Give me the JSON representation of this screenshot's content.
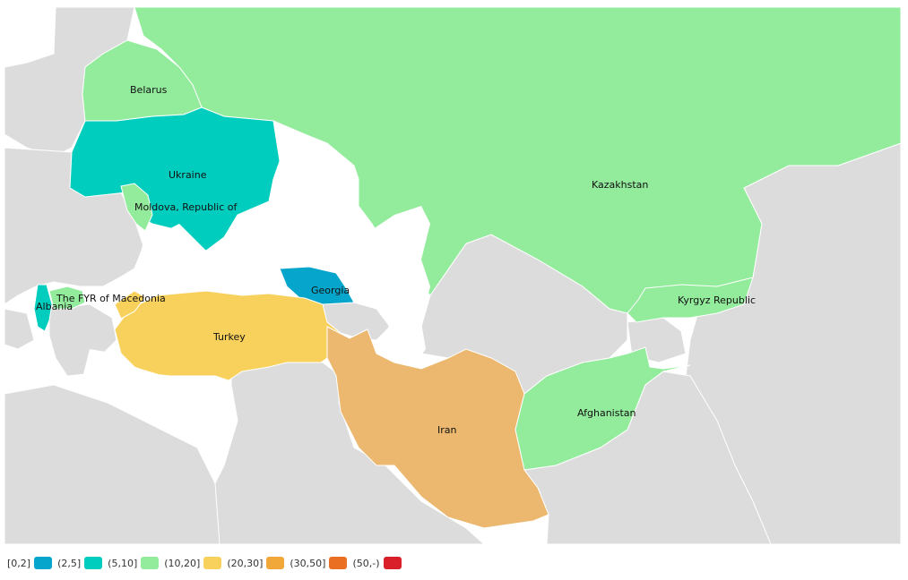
{
  "colors": {
    "water": "#ffffff",
    "no_data": "#dcdcdc",
    "border": "#ffffff"
  },
  "legend": [
    {
      "label": "[0,2]",
      "color": "#06a6cc"
    },
    {
      "label": "(2,5]",
      "color": "#00cdbd"
    },
    {
      "label": "(5,10]",
      "color": "#93eb9c"
    },
    {
      "label": "(10,20]",
      "color": "#f8d15c"
    },
    {
      "label": "(20,30]",
      "color": "#f2a739"
    },
    {
      "label": "(30,50]",
      "color": "#ea6f22"
    },
    {
      "label": "(50,-)",
      "color": "#d9202a"
    }
  ],
  "countries": [
    {
      "name": "Kazakhstan",
      "label": "Kazakhstan",
      "color": "#93eb9c"
    },
    {
      "name": "Belarus",
      "label": "Belarus",
      "color": "#93eb9c"
    },
    {
      "name": "Ukraine",
      "label": "Ukraine",
      "color": "#00cdbd"
    },
    {
      "name": "Moldova",
      "label": "Moldova, Republic of",
      "color": "#93eb9c"
    },
    {
      "name": "Georgia",
      "label": "Georgia",
      "color": "#06a6cc"
    },
    {
      "name": "Kyrgyzstan",
      "label": "Kyrgyz Republic",
      "color": "#93eb9c"
    },
    {
      "name": "Turkey",
      "label": "Turkey",
      "color": "#f8d15c"
    },
    {
      "name": "Iran",
      "label": "Iran",
      "color": "#ecb86f"
    },
    {
      "name": "Afghanistan",
      "label": "Afghanistan",
      "color": "#93eb9c"
    },
    {
      "name": "Macedonia",
      "label": "The FYR of Macedonia",
      "color": "#93eb9c"
    },
    {
      "name": "Albania",
      "label": "Albania",
      "color": "#00cdbd"
    }
  ]
}
